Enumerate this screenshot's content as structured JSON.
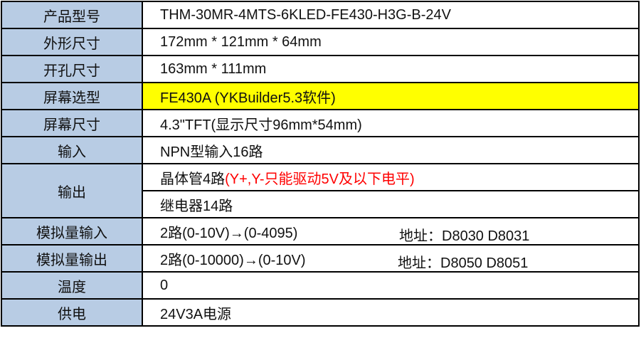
{
  "rows": [
    {
      "label": "产品型号",
      "value": "THM-30MR-4MTS-6KLED-FE430-H3G-B-24V"
    },
    {
      "label": "外形尺寸",
      "value": "172mm * 121mm * 64mm"
    },
    {
      "label": "开孔尺寸",
      "value": "163mm * 111mm"
    },
    {
      "label": "屏幕选型",
      "value": "FE430A (YKBuilder5.3软件)",
      "highlight": "#ffff00"
    },
    {
      "label": "屏幕尺寸",
      "value": "4.3\"TFT(显示尺寸96mm*54mm)"
    },
    {
      "label": "输入",
      "value": "NPN型输入16路"
    },
    {
      "label": "输出",
      "value": "晶体管4路",
      "note": "(Y+,Y-只能驱动5V及以下电平)",
      "note_color": "#ff0000",
      "value2": "继电器14路"
    },
    {
      "label": "模拟量输入",
      "value": "2路(0-10V)→(0-4095)",
      "address": "地址：D8030   D8031"
    },
    {
      "label": "模拟量输出",
      "value": "2路(0-10000)→(0-10V)",
      "address": "地址：D8050   D8051"
    },
    {
      "label": "温度",
      "value": "0"
    },
    {
      "label": "供电",
      "value": "24V3A电源"
    }
  ],
  "colors": {
    "label_bg": "#b8cce4",
    "border": "#000000"
  }
}
